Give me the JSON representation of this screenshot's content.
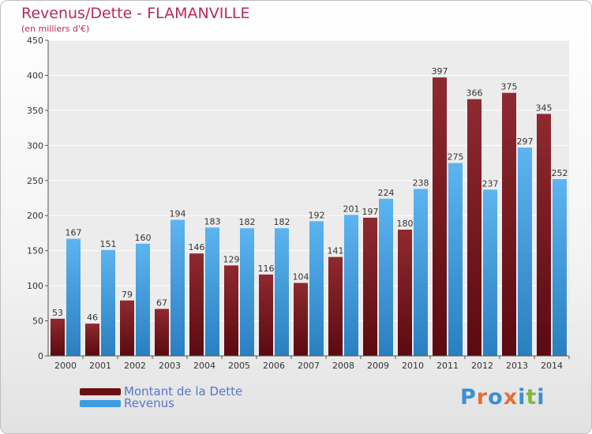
{
  "title": "Revenus/Dette - FLAMANVILLE",
  "subtitle": "(en milliers d'€)",
  "logo_text": "Proxiti",
  "logo_colors": [
    "#3a8fd0",
    "#e0703a",
    "#3a8fd0",
    "#e0703a",
    "#3a8fd0",
    "#82b93c",
    "#3a8fd0"
  ],
  "legend": [
    {
      "label": "Montant de la Dette",
      "color": "#6b0f14"
    },
    {
      "label": "Revenus",
      "color": "#3d9de0"
    }
  ],
  "chart_data": {
    "type": "bar",
    "categories": [
      "2000",
      "2001",
      "2002",
      "2003",
      "2004",
      "2005",
      "2006",
      "2007",
      "2008",
      "2009",
      "2010",
      "2011",
      "2012",
      "2013",
      "2014"
    ],
    "series": [
      {
        "name": "Montant de la Dette",
        "color": "#6b0f14",
        "values": [
          53,
          46,
          79,
          67,
          146,
          129,
          116,
          104,
          141,
          197,
          180,
          397,
          366,
          375,
          345
        ]
      },
      {
        "name": "Revenus",
        "color": "#3d9de0",
        "values": [
          167,
          151,
          160,
          194,
          183,
          182,
          182,
          192,
          201,
          224,
          238,
          275,
          237,
          297,
          252
        ]
      }
    ],
    "ylim": [
      0,
      450
    ],
    "yticks": [
      0,
      50,
      100,
      150,
      200,
      250,
      300,
      350,
      400,
      450
    ],
    "grid": true,
    "legend_position": "bottom-left"
  }
}
